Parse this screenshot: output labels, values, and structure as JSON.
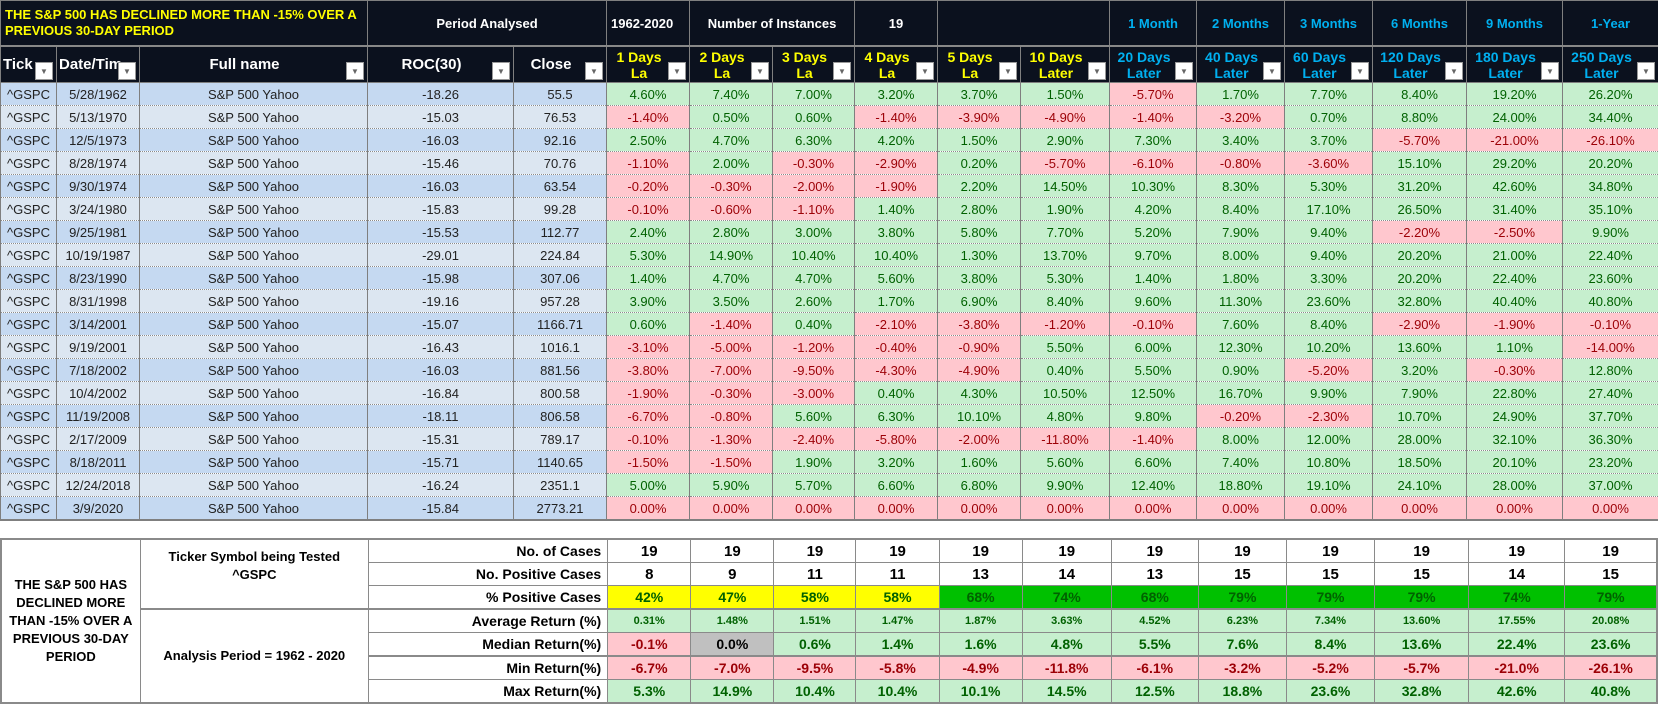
{
  "header": {
    "title": "THE S&P 500 HAS DECLINED MORE THAN -15% OVER A PREVIOUS 30-DAY PERIOD",
    "period_label": "Period Analysed",
    "period_value": "1962-2020",
    "instances_label": "Number of Instances",
    "instances_value": "19",
    "horizons": [
      "1 Month",
      "2 Months",
      "3 Months",
      "6 Months",
      "9 Months",
      "1-Year"
    ]
  },
  "columns": [
    {
      "label": "Tick",
      "style": "w"
    },
    {
      "label": "Date/Tim",
      "style": "w"
    },
    {
      "label": "Full name",
      "style": "w"
    },
    {
      "label": "ROC(30)",
      "style": "w"
    },
    {
      "label": "Close",
      "style": "w"
    },
    {
      "label": "1 Days La",
      "style": "y"
    },
    {
      "label": "2 Days La",
      "style": "y"
    },
    {
      "label": "3 Days La",
      "style": "y"
    },
    {
      "label": "4 Days La",
      "style": "y"
    },
    {
      "label": "5 Days La",
      "style": "y"
    },
    {
      "label": "10 Days Later",
      "style": "y"
    },
    {
      "label": "20 Days Later",
      "style": "b"
    },
    {
      "label": "40 Days Later",
      "style": "b"
    },
    {
      "label": "60 Days Later",
      "style": "b"
    },
    {
      "label": "120 Days Later",
      "style": "b"
    },
    {
      "label": "180 Days Later",
      "style": "b"
    },
    {
      "label": "250 Days Later",
      "style": "b"
    }
  ],
  "rows": [
    [
      "^GSPC",
      "5/28/1962",
      "S&P 500 Yahoo",
      "-18.26",
      "55.5",
      "4.60%",
      "7.40%",
      "7.00%",
      "3.20%",
      "3.70%",
      "1.50%",
      "-5.70%",
      "1.70%",
      "7.70%",
      "8.40%",
      "19.20%",
      "26.20%"
    ],
    [
      "^GSPC",
      "5/13/1970",
      "S&P 500 Yahoo",
      "-15.03",
      "76.53",
      "-1.40%",
      "0.50%",
      "0.60%",
      "-1.40%",
      "-3.90%",
      "-4.90%",
      "-1.40%",
      "-3.20%",
      "0.70%",
      "8.80%",
      "24.00%",
      "34.40%"
    ],
    [
      "^GSPC",
      "12/5/1973",
      "S&P 500 Yahoo",
      "-16.03",
      "92.16",
      "2.50%",
      "4.70%",
      "6.30%",
      "4.20%",
      "1.50%",
      "2.90%",
      "7.30%",
      "3.40%",
      "3.70%",
      "-5.70%",
      "-21.00%",
      "-26.10%"
    ],
    [
      "^GSPC",
      "8/28/1974",
      "S&P 500 Yahoo",
      "-15.46",
      "70.76",
      "-1.10%",
      "2.00%",
      "-0.30%",
      "-2.90%",
      "0.20%",
      "-5.70%",
      "-6.10%",
      "-0.80%",
      "-3.60%",
      "15.10%",
      "29.20%",
      "20.20%"
    ],
    [
      "^GSPC",
      "9/30/1974",
      "S&P 500 Yahoo",
      "-16.03",
      "63.54",
      "-0.20%",
      "-0.30%",
      "-2.00%",
      "-1.90%",
      "2.20%",
      "14.50%",
      "10.30%",
      "8.30%",
      "5.30%",
      "31.20%",
      "42.60%",
      "34.80%"
    ],
    [
      "^GSPC",
      "3/24/1980",
      "S&P 500 Yahoo",
      "-15.83",
      "99.28",
      "-0.10%",
      "-0.60%",
      "-1.10%",
      "1.40%",
      "2.80%",
      "1.90%",
      "4.20%",
      "8.40%",
      "17.10%",
      "26.50%",
      "31.40%",
      "35.10%"
    ],
    [
      "^GSPC",
      "9/25/1981",
      "S&P 500 Yahoo",
      "-15.53",
      "112.77",
      "2.40%",
      "2.80%",
      "3.00%",
      "3.80%",
      "5.80%",
      "7.70%",
      "5.20%",
      "7.90%",
      "9.40%",
      "-2.20%",
      "-2.50%",
      "9.90%"
    ],
    [
      "^GSPC",
      "10/19/1987",
      "S&P 500 Yahoo",
      "-29.01",
      "224.84",
      "5.30%",
      "14.90%",
      "10.40%",
      "10.40%",
      "1.30%",
      "13.70%",
      "9.70%",
      "8.00%",
      "9.40%",
      "20.20%",
      "21.00%",
      "22.40%"
    ],
    [
      "^GSPC",
      "8/23/1990",
      "S&P 500 Yahoo",
      "-15.98",
      "307.06",
      "1.40%",
      "4.70%",
      "4.70%",
      "5.60%",
      "3.80%",
      "5.30%",
      "1.40%",
      "1.80%",
      "3.30%",
      "20.20%",
      "22.40%",
      "23.60%"
    ],
    [
      "^GSPC",
      "8/31/1998",
      "S&P 500 Yahoo",
      "-19.16",
      "957.28",
      "3.90%",
      "3.50%",
      "2.60%",
      "1.70%",
      "6.90%",
      "8.40%",
      "9.60%",
      "11.30%",
      "23.60%",
      "32.80%",
      "40.40%",
      "40.80%"
    ],
    [
      "^GSPC",
      "3/14/2001",
      "S&P 500 Yahoo",
      "-15.07",
      "1166.71",
      "0.60%",
      "-1.40%",
      "0.40%",
      "-2.10%",
      "-3.80%",
      "-1.20%",
      "-0.10%",
      "7.60%",
      "8.40%",
      "-2.90%",
      "-1.90%",
      "-0.10%"
    ],
    [
      "^GSPC",
      "9/19/2001",
      "S&P 500 Yahoo",
      "-16.43",
      "1016.1",
      "-3.10%",
      "-5.00%",
      "-1.20%",
      "-0.40%",
      "-0.90%",
      "5.50%",
      "6.00%",
      "12.30%",
      "10.20%",
      "13.60%",
      "1.10%",
      "-14.00%"
    ],
    [
      "^GSPC",
      "7/18/2002",
      "S&P 500 Yahoo",
      "-16.03",
      "881.56",
      "-3.80%",
      "-7.00%",
      "-9.50%",
      "-4.30%",
      "-4.90%",
      "0.40%",
      "5.50%",
      "0.90%",
      "-5.20%",
      "3.20%",
      "-0.30%",
      "12.80%"
    ],
    [
      "^GSPC",
      "10/4/2002",
      "S&P 500 Yahoo",
      "-16.84",
      "800.58",
      "-1.90%",
      "-0.30%",
      "-3.00%",
      "0.40%",
      "4.30%",
      "10.50%",
      "12.50%",
      "16.70%",
      "9.90%",
      "7.90%",
      "22.80%",
      "27.40%"
    ],
    [
      "^GSPC",
      "11/19/2008",
      "S&P 500 Yahoo",
      "-18.11",
      "806.58",
      "-6.70%",
      "-0.80%",
      "5.60%",
      "6.30%",
      "10.10%",
      "4.80%",
      "9.80%",
      "-0.20%",
      "-2.30%",
      "10.70%",
      "24.90%",
      "37.70%"
    ],
    [
      "^GSPC",
      "2/17/2009",
      "S&P 500 Yahoo",
      "-15.31",
      "789.17",
      "-0.10%",
      "-1.30%",
      "-2.40%",
      "-5.80%",
      "-2.00%",
      "-11.80%",
      "-1.40%",
      "8.00%",
      "12.00%",
      "28.00%",
      "32.10%",
      "36.30%"
    ],
    [
      "^GSPC",
      "8/18/2011",
      "S&P 500 Yahoo",
      "-15.71",
      "1140.65",
      "-1.50%",
      "-1.50%",
      "1.90%",
      "3.20%",
      "1.60%",
      "5.60%",
      "6.60%",
      "7.40%",
      "10.80%",
      "18.50%",
      "20.10%",
      "23.20%"
    ],
    [
      "^GSPC",
      "12/24/2018",
      "S&P 500 Yahoo",
      "-16.24",
      "2351.1",
      "5.00%",
      "5.90%",
      "5.70%",
      "6.60%",
      "6.80%",
      "9.90%",
      "12.40%",
      "18.80%",
      "19.10%",
      "24.10%",
      "28.00%",
      "37.00%"
    ],
    [
      "^GSPC",
      "3/9/2020",
      "S&P 500 Yahoo",
      "-15.84",
      "2773.21",
      "0.00%",
      "0.00%",
      "0.00%",
      "0.00%",
      "0.00%",
      "0.00%",
      "0.00%",
      "0.00%",
      "0.00%",
      "0.00%",
      "0.00%",
      "0.00%"
    ]
  ],
  "summary": {
    "title": "THE S&P 500 HAS DECLINED MORE THAN -15% OVER A PREVIOUS 30-DAY PERIOD",
    "ticker_label": "Ticker Symbol being Tested",
    "ticker_value": "^GSPC",
    "analysis_period": "Analysis Period = 1962 - 2020",
    "rows": [
      {
        "label": "No. of Cases",
        "kind": "plain",
        "values": [
          "19",
          "19",
          "19",
          "19",
          "19",
          "19",
          "19",
          "19",
          "19",
          "19",
          "19",
          "19"
        ]
      },
      {
        "label": "No. Positive Cases",
        "kind": "plain",
        "values": [
          "8",
          "9",
          "11",
          "11",
          "13",
          "14",
          "13",
          "15",
          "15",
          "15",
          "14",
          "15"
        ]
      },
      {
        "label": "% Positive Cases",
        "kind": "pct",
        "values": [
          "42%",
          "47%",
          "58%",
          "58%",
          "68%",
          "74%",
          "68%",
          "79%",
          "79%",
          "79%",
          "74%",
          "79%"
        ]
      },
      {
        "label": "Average Return (%)",
        "kind": "ret",
        "values": [
          "0.31%",
          "1.48%",
          "1.51%",
          "1.47%",
          "1.87%",
          "3.63%",
          "4.52%",
          "6.23%",
          "7.34%",
          "13.60%",
          "17.55%",
          "20.08%"
        ]
      },
      {
        "label": "Median Return(%)",
        "kind": "ret",
        "values": [
          "-0.1%",
          "0.0%",
          "0.6%",
          "1.4%",
          "1.6%",
          "4.8%",
          "5.5%",
          "7.6%",
          "8.4%",
          "13.6%",
          "22.4%",
          "23.6%"
        ]
      },
      {
        "label": "Min Return(%)",
        "kind": "ret",
        "values": [
          "-6.7%",
          "-7.0%",
          "-9.5%",
          "-5.8%",
          "-4.9%",
          "-11.8%",
          "-6.1%",
          "-3.2%",
          "-5.2%",
          "-5.7%",
          "-21.0%",
          "-26.1%"
        ]
      },
      {
        "label": "Max Return(%)",
        "kind": "ret",
        "values": [
          "5.3%",
          "14.9%",
          "10.4%",
          "10.4%",
          "10.1%",
          "14.5%",
          "12.5%",
          "18.8%",
          "23.6%",
          "32.8%",
          "42.6%",
          "40.8%"
        ]
      }
    ]
  },
  "colors": {
    "header_bg": "#0b111e",
    "yellow": "#ffff00",
    "blue": "#00b0f0",
    "pos_bg": "#c6efce",
    "neg_bg": "#ffc7ce",
    "pct_high": "#00c000",
    "pct_low": "#ffff00"
  }
}
